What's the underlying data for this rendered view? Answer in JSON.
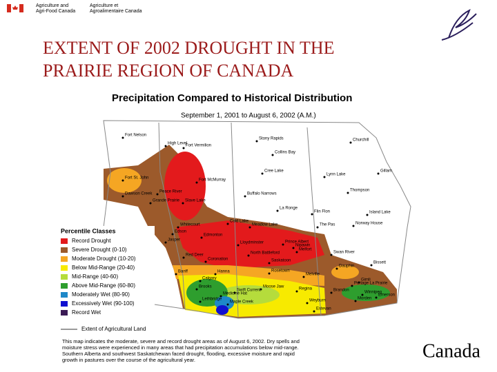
{
  "header": {
    "dept_en": [
      "Agriculture and",
      "Agri-Food Canada"
    ],
    "dept_fr": [
      "Agriculture et",
      "Agroalimentaire Canada"
    ]
  },
  "title": [
    "EXTENT OF 2002 DROUGHT IN THE",
    "PRAIRIE REGION OF CANADA"
  ],
  "map": {
    "title": "Precipitation Compared to Historical Distribution",
    "subtitle": "September 1, 2001 to August 6, 2002 (A.M.)",
    "places": [
      "Fort Nelson",
      "High Level",
      "Fort Vermilion",
      "Stony Rapids",
      "Collins Bay",
      "Churchill",
      "Fort St. John",
      "Dawson Creek",
      "Peace River",
      "Grande Prairie",
      "Fort McMurray",
      "Slave Lake",
      "Cree Lake",
      "Buffalo Narrows",
      "Lynn Lake",
      "Gillam",
      "Thompson",
      "La Ronge",
      "Flin Flon",
      "Island Lake",
      "The Pas",
      "Norway House",
      "Whitecourt",
      "Cold Lake",
      "Meadow Lake",
      "Edson",
      "Edmonton",
      "Jasper",
      "Lloydminster",
      "Prince Albert",
      "Nipawin",
      "Red Deer",
      "North Battleford",
      "Melfort",
      "Swan River",
      "Coronation",
      "Saskatoon",
      "Bissett",
      "Banff",
      "Calgary",
      "Rosetown",
      "Dauphin",
      "Hanna",
      "Melville",
      "Gimli",
      "Brooks",
      "Swift Current",
      "Moose Jaw",
      "Regina",
      "Portage La Prairie",
      "Lethbridge",
      "Brandon",
      "Winnipeg",
      "Medicine Hat",
      "Maple Creek",
      "Weyburn",
      "Morden",
      "Emerson",
      "Estevan"
    ],
    "legend": {
      "title": "Percentile Classes",
      "classes": [
        {
          "label": "Record Drought",
          "color": "#e31a1c"
        },
        {
          "label": "Severe Drought (0-10)",
          "color": "#9c5a2b"
        },
        {
          "label": "Moderate Drought (10-20)",
          "color": "#f5a623"
        },
        {
          "label": "Below Mid-Range (20-40)",
          "color": "#f7ea00"
        },
        {
          "label": "Mid-Range (40-60)",
          "color": "#b5dc3c"
        },
        {
          "label": "Above Mid-Range (60-80)",
          "color": "#2e9e2e"
        },
        {
          "label": "Moderately Wet (80-90)",
          "color": "#1e88c8"
        },
        {
          "label": "Excessively Wet (90-100)",
          "color": "#1010d0"
        },
        {
          "label": "Record Wet",
          "color": "#3a1a55"
        }
      ],
      "extent_label": "Extent of Agricultural Land"
    },
    "note": [
      "This map indicates the moderate, severe and record drought areas as of August 6, 2002. Dry spells and",
      "moisture stress were experienced in many areas that had precipitation accumulations below mid-range.",
      "Southern Alberta and southwest Saskatchewan faced drought, flooding, excessive moisture and rapid",
      "growth in pastures over the course of the agricultural year."
    ]
  },
  "wordmark": "Canada"
}
